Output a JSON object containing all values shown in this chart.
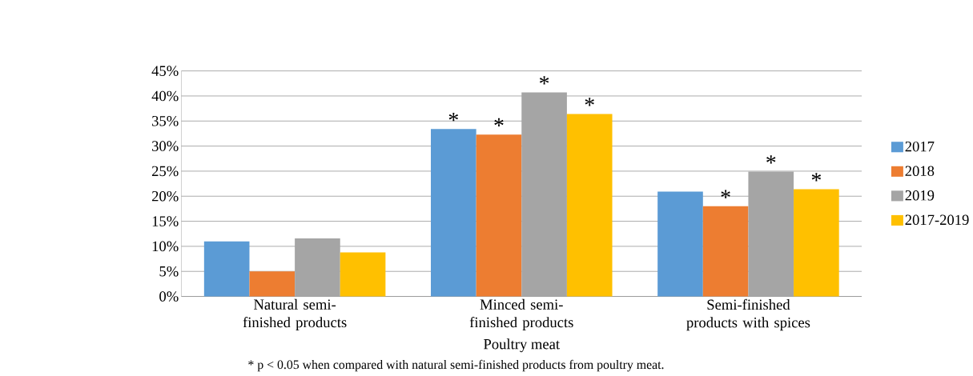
{
  "chart_data": {
    "type": "bar",
    "categories": [
      "Natural semi-finished products",
      "Minced semi-finished products",
      "Semi-finished products with spices"
    ],
    "series": [
      {
        "name": "2017",
        "color": "#5b9bd5",
        "values": [
          11.0,
          33.4,
          20.9
        ],
        "value_labels": [
          null,
          "*",
          null
        ]
      },
      {
        "name": "2018",
        "color": "#ed7d31",
        "values": [
          5.0,
          32.3,
          18.0
        ],
        "value_labels": [
          null,
          "*",
          "*"
        ]
      },
      {
        "name": "2019",
        "color": "#a5a5a5",
        "values": [
          11.6,
          40.7,
          24.9
        ],
        "value_labels": [
          null,
          "*",
          "*"
        ]
      },
      {
        "name": "2017-2019",
        "color": "#ffc000",
        "values": [
          8.8,
          36.4,
          21.4
        ],
        "value_labels": [
          null,
          "*",
          "*"
        ]
      }
    ],
    "xlabel": "Poultry meat",
    "ylim": [
      0,
      45
    ],
    "yticks": [
      {
        "value": 0,
        "label": "0%"
      },
      {
        "value": 5,
        "label": "5%"
      },
      {
        "value": 10,
        "label": "10%"
      },
      {
        "value": 15,
        "label": "15%"
      },
      {
        "value": 20,
        "label": "20%"
      },
      {
        "value": 25,
        "label": "25%"
      },
      {
        "value": 30,
        "label": "30%"
      },
      {
        "value": 35,
        "label": "35%"
      },
      {
        "value": 40,
        "label": "40%"
      },
      {
        "value": 45,
        "label": "45%"
      }
    ],
    "grid": "y",
    "legend": "right",
    "annotations": [
      "* p < 0.05 when compared with natural semi-finished products from poultry meat."
    ]
  }
}
